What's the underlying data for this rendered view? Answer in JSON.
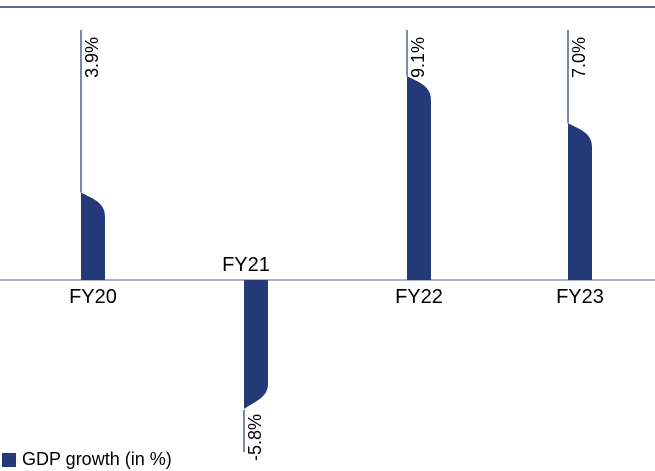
{
  "colors": {
    "bar": "#243a78",
    "rule": "#243a78",
    "axis": "#7a8199",
    "text": "#000000"
  },
  "chart_data": {
    "type": "bar",
    "categories": [
      "FY20",
      "FY21",
      "FY22",
      "FY23"
    ],
    "series": [
      {
        "name": "GDP growth (in %)",
        "values": [
          3.9,
          -5.8,
          9.1,
          7.0
        ]
      }
    ],
    "value_labels": [
      "3.9%",
      "-5.8%",
      "9.1%",
      "7.0%"
    ],
    "title": "",
    "xlabel": "",
    "ylabel": "",
    "ylim": [
      -7.5,
      11.0
    ],
    "grid": false,
    "legend_position": "bottom-left"
  }
}
